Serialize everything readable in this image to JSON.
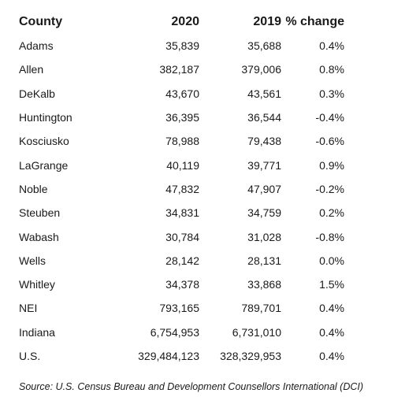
{
  "table": {
    "headers": [
      "County",
      "2020",
      "2019",
      "% change"
    ],
    "rows": [
      [
        "Adams",
        "35,839",
        "35,688",
        "0.4%"
      ],
      [
        "Allen",
        "382,187",
        "379,006",
        "0.8%"
      ],
      [
        "DeKalb",
        "43,670",
        "43,561",
        "0.3%"
      ],
      [
        "Huntington",
        "36,395",
        "36,544",
        "-0.4%"
      ],
      [
        "Kosciusko",
        "78,988",
        "79,438",
        "-0.6%"
      ],
      [
        "LaGrange",
        "40,119",
        "39,771",
        "0.9%"
      ],
      [
        "Noble",
        "47,832",
        "47,907",
        "-0.2%"
      ],
      [
        "Steuben",
        "34,831",
        "34,759",
        "0.2%"
      ],
      [
        "Wabash",
        "30,784",
        "31,028",
        "-0.8%"
      ],
      [
        "Wells",
        "28,142",
        "28,131",
        "0.0%"
      ],
      [
        "Whitley",
        "34,378",
        "33,868",
        "1.5%"
      ],
      [
        "NEI",
        "793,165",
        "789,701",
        "0.4%"
      ],
      [
        "Indiana",
        "6,754,953",
        "6,731,010",
        "0.4%"
      ],
      [
        "U.S.",
        "329,484,123",
        "328,329,953",
        "0.4%"
      ]
    ]
  },
  "source": "Source: U.S. Census Bureau and Development Counsellors International (DCI)"
}
